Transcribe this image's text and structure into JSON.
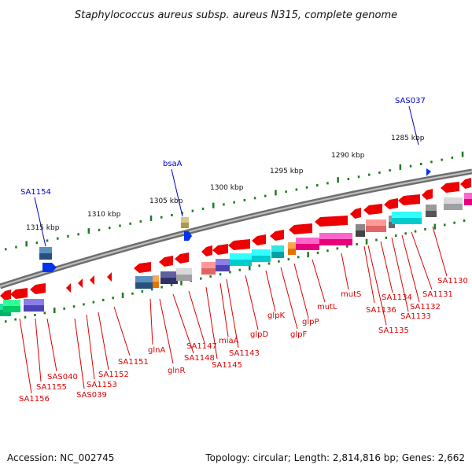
{
  "title": "Staphylococcus aureus subsp. aureus N315, complete genome",
  "accession": "Accession: NC_002745",
  "summary": "Topology: circular; Length: 2,814,816 bp; Genes: 2,662",
  "colors": {
    "backbone": "#8c8c8c",
    "tick_outer": "#1f7a1f",
    "gene_red": "#ee0000",
    "label_red": "#dd0000",
    "label_blue": "#0000cc",
    "blue_gene": "#0033ee"
  },
  "scale_labels": [
    "1315 kbp",
    "1310 kbp",
    "1305 kbp",
    "1300 kbp",
    "1295 kbp",
    "1290 kbp",
    "1285 kbp"
  ],
  "top_labels": [
    "SA1154",
    "bsaA",
    "SAS037"
  ],
  "bottom_labels": [
    "SA1156",
    "SA1155",
    "SAS040",
    "SAS039",
    "SA1153",
    "SA1152",
    "SA1151",
    "glnA",
    "glnR",
    "SA1148",
    "SA1147",
    "SA1145",
    "miaA",
    "SA1143",
    "glpD",
    "glpK",
    "glpF",
    "glpP",
    "mutL",
    "mutS",
    "SA1136",
    "SA1135",
    "SA1134",
    "SA1133",
    "SA1132",
    "SA1131",
    "SA1130"
  ]
}
